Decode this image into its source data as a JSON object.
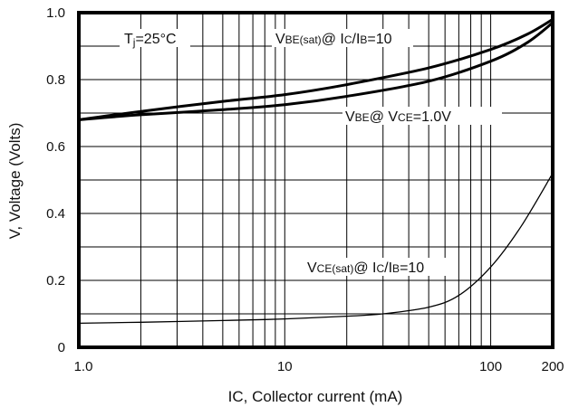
{
  "chart_data": {
    "type": "line",
    "title": "",
    "xlabel": "IC, Collector current (mA)",
    "ylabel": "V, Voltage (Volts)",
    "x_scale": "log",
    "xlim": [
      1,
      200
    ],
    "ylim": [
      0,
      1.0
    ],
    "grid": true,
    "x_tick_labels": [
      {
        "value": 1,
        "label": "1.0"
      },
      {
        "value": 10,
        "label": "10"
      },
      {
        "value": 100,
        "label": "100"
      },
      {
        "value": 200,
        "label": "200"
      }
    ],
    "y_tick_labels": [
      {
        "value": 0,
        "label": "0"
      },
      {
        "value": 0.2,
        "label": "0.2"
      },
      {
        "value": 0.4,
        "label": "0.4"
      },
      {
        "value": 0.6,
        "label": "0.6"
      },
      {
        "value": 0.8,
        "label": "0.8"
      },
      {
        "value": 1.0,
        "label": "1.0"
      }
    ],
    "annotations": {
      "tj": {
        "main": "T",
        "sub": "j",
        "rest": "=25°C"
      },
      "vbe_sat": {
        "v": "V",
        "sub1": "BE(sat)",
        "mid": "@ I",
        "sub2": "C",
        "slash": "/I",
        "sub3": "B",
        "end": "=10"
      },
      "vbe": {
        "v": "V",
        "sub1": "BE",
        "mid": "@ V",
        "sub2": "CE",
        "end": "=1.0V"
      },
      "vce_sat": {
        "v": "V",
        "sub1": "CE(sat)",
        "mid": "@ I",
        "sub2": "C",
        "slash": "/I",
        "sub3": "B",
        "end": "=10"
      }
    },
    "series": [
      {
        "id": "vbe_sat",
        "style": "thick",
        "x": [
          1,
          2,
          5,
          10,
          20,
          50,
          100,
          150,
          200
        ],
        "y": [
          0.68,
          0.705,
          0.735,
          0.755,
          0.785,
          0.835,
          0.89,
          0.935,
          0.98
        ]
      },
      {
        "id": "vbe",
        "style": "thick",
        "x": [
          1,
          2,
          5,
          10,
          20,
          50,
          100,
          150,
          200
        ],
        "y": [
          0.68,
          0.695,
          0.71,
          0.725,
          0.75,
          0.795,
          0.855,
          0.91,
          0.97
        ]
      },
      {
        "id": "vce_sat",
        "style": "thin",
        "x": [
          1,
          2,
          5,
          10,
          20,
          30,
          50,
          70,
          100,
          140,
          200
        ],
        "y": [
          0.072,
          0.075,
          0.08,
          0.085,
          0.093,
          0.1,
          0.12,
          0.155,
          0.24,
          0.36,
          0.52
        ]
      }
    ]
  }
}
